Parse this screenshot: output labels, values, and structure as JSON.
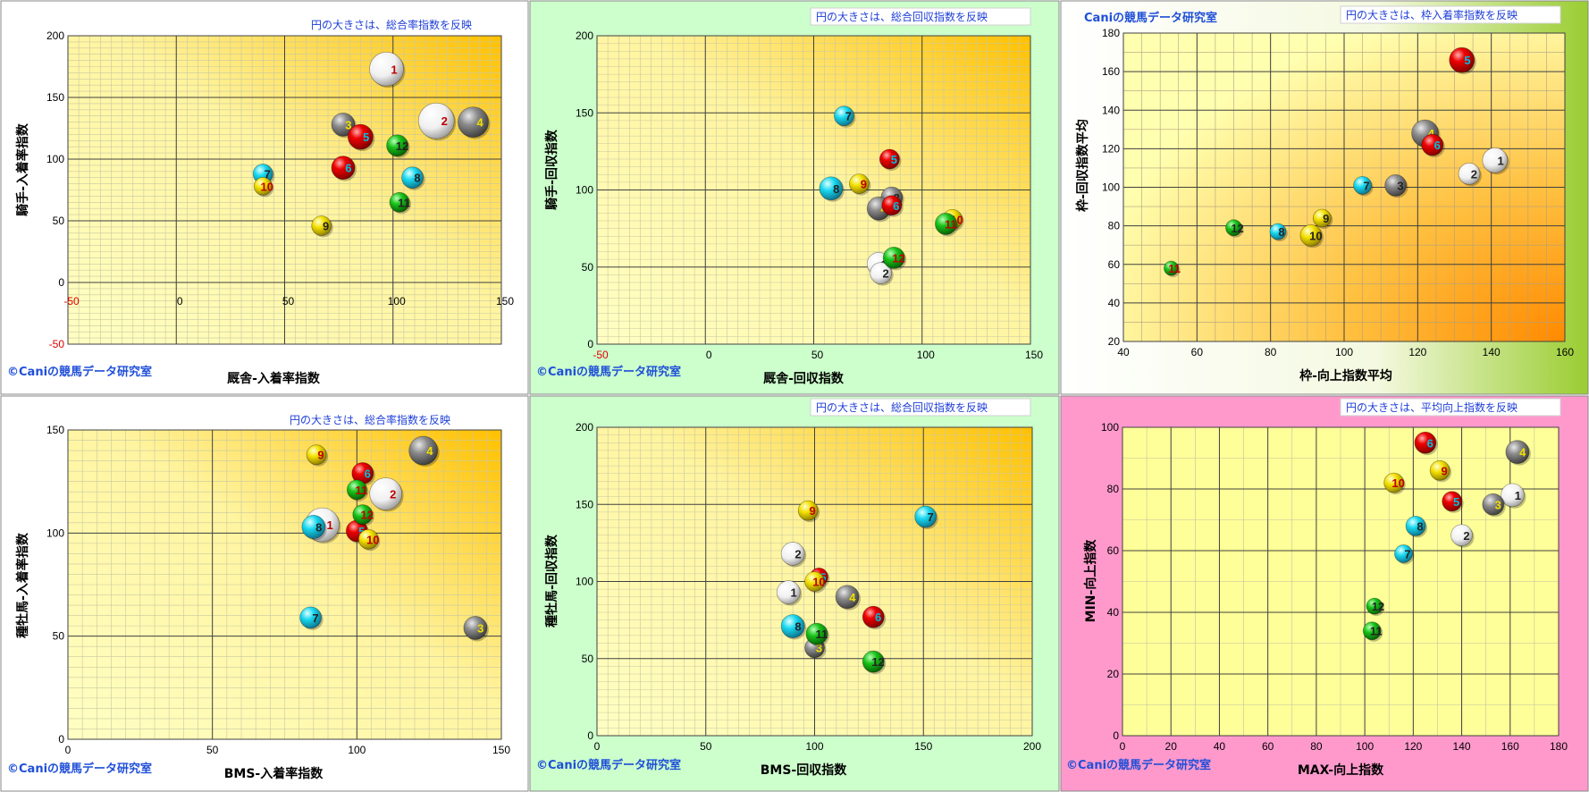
{
  "copyright": "©Caniの競馬データ研究室",
  "colors": {
    "red": "#ee0000",
    "white": "#f4f4f4",
    "gray": "#8a8a8a",
    "green": "#18c218",
    "cyan": "#18d8f0",
    "yellow": "#f4e000",
    "label_black": "#222222",
    "label_red": "#c00000",
    "label_yellow": "#f0e000",
    "label_cyan": "#00c0e0"
  },
  "chart_data": [
    {
      "type": "scatter",
      "note": "円の大きさは、総合率指数を反映",
      "xlabel": "厩舎-入着率指数",
      "ylabel": "騎手-入着率指数",
      "xlim": [
        -50,
        150
      ],
      "ylim": [
        -50,
        200
      ],
      "xticks": [
        "-50",
        "0",
        "50",
        "100",
        "150"
      ],
      "yticks": [
        "-50",
        "0",
        "50",
        "100",
        "150",
        "200"
      ],
      "points": [
        {
          "label": "1",
          "x": 97,
          "y": 173,
          "size": 19,
          "color": "white",
          "lc": "label_red"
        },
        {
          "label": "2",
          "x": 120,
          "y": 131,
          "size": 20,
          "color": "white",
          "lc": "label_red"
        },
        {
          "label": "3",
          "x": 77,
          "y": 128,
          "size": 13,
          "color": "gray",
          "lc": "label_yellow"
        },
        {
          "label": "4",
          "x": 137,
          "y": 130,
          "size": 17,
          "color": "gray",
          "lc": "label_yellow"
        },
        {
          "label": "5",
          "x": 85,
          "y": 118,
          "size": 14,
          "color": "red",
          "lc": "label_cyan"
        },
        {
          "label": "6",
          "x": 77,
          "y": 93,
          "size": 13,
          "color": "red",
          "lc": "label_cyan"
        },
        {
          "label": "7",
          "x": 40,
          "y": 88,
          "size": 11,
          "color": "cyan",
          "lc": "label_black"
        },
        {
          "label": "8",
          "x": 109,
          "y": 85,
          "size": 12,
          "color": "cyan",
          "lc": "label_black"
        },
        {
          "label": "9",
          "x": 67,
          "y": 46,
          "size": 11,
          "color": "yellow",
          "lc": "label_black"
        },
        {
          "label": "10",
          "x": 40,
          "y": 78,
          "size": 10,
          "color": "yellow",
          "lc": "label_red"
        },
        {
          "label": "11",
          "x": 103,
          "y": 65,
          "size": 11,
          "color": "green",
          "lc": "label_black"
        },
        {
          "label": "12",
          "x": 102,
          "y": 111,
          "size": 12,
          "color": "green",
          "lc": "label_black"
        }
      ]
    },
    {
      "type": "scatter",
      "note": "円の大きさは、総合回収指数を反映",
      "xlabel": "厩舎-回収指数",
      "ylabel": "騎手-回収指数",
      "xlim": [
        -50,
        150
      ],
      "ylim": [
        0,
        200
      ],
      "xticks": [
        "-50",
        "0",
        "50",
        "100",
        "150"
      ],
      "yticks": [
        "0",
        "50",
        "100",
        "150",
        "200"
      ],
      "points": [
        {
          "label": "1",
          "x": 80,
          "y": 52,
          "size": 13,
          "color": "white",
          "lc": "label_black"
        },
        {
          "label": "2",
          "x": 81,
          "y": 46,
          "size": 12,
          "color": "white",
          "lc": "label_black"
        },
        {
          "label": "3",
          "x": 86,
          "y": 95,
          "size": 12,
          "color": "gray",
          "lc": "label_black"
        },
        {
          "label": "4",
          "x": 80,
          "y": 88,
          "size": 13,
          "color": "gray",
          "lc": "label_yellow"
        },
        {
          "label": "5",
          "x": 85,
          "y": 120,
          "size": 11,
          "color": "red",
          "lc": "label_cyan"
        },
        {
          "label": "6",
          "x": 86,
          "y": 90,
          "size": 11,
          "color": "red",
          "lc": "label_cyan"
        },
        {
          "label": "7",
          "x": 64,
          "y": 148,
          "size": 11,
          "color": "cyan",
          "lc": "label_black"
        },
        {
          "label": "8",
          "x": 58,
          "y": 101,
          "size": 13,
          "color": "cyan",
          "lc": "label_black"
        },
        {
          "label": "9",
          "x": 71,
          "y": 104,
          "size": 11,
          "color": "yellow",
          "lc": "label_red"
        },
        {
          "label": "10",
          "x": 114,
          "y": 81,
          "size": 11,
          "color": "yellow",
          "lc": "label_red"
        },
        {
          "label": "11",
          "x": 111,
          "y": 78,
          "size": 12,
          "color": "green",
          "lc": "label_red"
        },
        {
          "label": "12",
          "x": 87,
          "y": 56,
          "size": 12,
          "color": "green",
          "lc": "label_red"
        }
      ]
    },
    {
      "type": "scatter",
      "note": "円の大きさは、枠入着率指数を反映",
      "title": "Caniの競馬データ研究室",
      "xlabel": "枠-向上指数平均",
      "ylabel": "枠-回収指数平均",
      "xlim": [
        40,
        160
      ],
      "ylim": [
        20,
        180
      ],
      "xticks": [
        "40",
        "60",
        "80",
        "100",
        "120",
        "140",
        "160"
      ],
      "yticks": [
        "20",
        "40",
        "60",
        "80",
        "100",
        "120",
        "140",
        "160",
        "180"
      ],
      "points": [
        {
          "label": "1",
          "x": 141,
          "y": 114,
          "size": 14,
          "color": "white",
          "lc": "label_black"
        },
        {
          "label": "2",
          "x": 134,
          "y": 107,
          "size": 12,
          "color": "white",
          "lc": "label_black"
        },
        {
          "label": "3",
          "x": 114,
          "y": 101,
          "size": 12,
          "color": "gray",
          "lc": "label_black"
        },
        {
          "label": "4",
          "x": 122,
          "y": 128,
          "size": 15,
          "color": "gray",
          "lc": "label_yellow"
        },
        {
          "label": "5",
          "x": 132,
          "y": 166,
          "size": 14,
          "color": "red",
          "lc": "label_cyan"
        },
        {
          "label": "6",
          "x": 124,
          "y": 122,
          "size": 12,
          "color": "red",
          "lc": "label_cyan"
        },
        {
          "label": "7",
          "x": 105,
          "y": 101,
          "size": 10,
          "color": "cyan",
          "lc": "label_black"
        },
        {
          "label": "8",
          "x": 82,
          "y": 77,
          "size": 9,
          "color": "cyan",
          "lc": "label_black"
        },
        {
          "label": "9",
          "x": 94,
          "y": 84,
          "size": 10,
          "color": "yellow",
          "lc": "label_black"
        },
        {
          "label": "10",
          "x": 91,
          "y": 75,
          "size": 12,
          "color": "yellow",
          "lc": "label_black"
        },
        {
          "label": "11",
          "x": 53,
          "y": 58,
          "size": 8,
          "color": "green",
          "lc": "label_red"
        },
        {
          "label": "12",
          "x": 70,
          "y": 79,
          "size": 9,
          "color": "green",
          "lc": "label_black"
        }
      ]
    },
    {
      "type": "scatter",
      "note": "円の大きさは、総合率指数を反映",
      "xlabel": "BMS-入着率指数",
      "ylabel": "種牡馬-入着率指数",
      "xlim": [
        0,
        150
      ],
      "ylim": [
        0,
        150
      ],
      "xticks": [
        "0",
        "50",
        "100",
        "150"
      ],
      "yticks": [
        "0",
        "50",
        "100",
        "150"
      ],
      "points": [
        {
          "label": "1",
          "x": 88,
          "y": 104,
          "size": 19,
          "color": "white",
          "lc": "label_red"
        },
        {
          "label": "2",
          "x": 110,
          "y": 119,
          "size": 18,
          "color": "white",
          "lc": "label_red"
        },
        {
          "label": "3",
          "x": 141,
          "y": 54,
          "size": 13,
          "color": "gray",
          "lc": "label_yellow"
        },
        {
          "label": "4",
          "x": 123,
          "y": 140,
          "size": 16,
          "color": "gray",
          "lc": "label_yellow"
        },
        {
          "label": "5",
          "x": 100,
          "y": 101,
          "size": 12,
          "color": "red",
          "lc": "label_cyan"
        },
        {
          "label": "6",
          "x": 102,
          "y": 129,
          "size": 12,
          "color": "red",
          "lc": "label_cyan"
        },
        {
          "label": "7",
          "x": 84,
          "y": 59,
          "size": 12,
          "color": "cyan",
          "lc": "label_black"
        },
        {
          "label": "8",
          "x": 85,
          "y": 103,
          "size": 13,
          "color": "cyan",
          "lc": "label_black"
        },
        {
          "label": "9",
          "x": 86,
          "y": 138,
          "size": 11,
          "color": "yellow",
          "lc": "label_red"
        },
        {
          "label": "10",
          "x": 104,
          "y": 97,
          "size": 11,
          "color": "yellow",
          "lc": "label_red"
        },
        {
          "label": "11",
          "x": 100,
          "y": 121,
          "size": 11,
          "color": "green",
          "lc": "label_red"
        },
        {
          "label": "12",
          "x": 102,
          "y": 109,
          "size": 11,
          "color": "green",
          "lc": "label_red"
        }
      ]
    },
    {
      "type": "scatter",
      "note": "円の大きさは、総合回収指数を反映",
      "xlabel": "BMS-回収指数",
      "ylabel": "種牡馬-回収指数",
      "xlim": [
        0,
        200
      ],
      "ylim": [
        0,
        200
      ],
      "xticks": [
        "0",
        "50",
        "100",
        "150",
        "200"
      ],
      "yticks": [
        "0",
        "50",
        "100",
        "150",
        "200"
      ],
      "points": [
        {
          "label": "1",
          "x": 88,
          "y": 93,
          "size": 13,
          "color": "white",
          "lc": "label_black"
        },
        {
          "label": "2",
          "x": 90,
          "y": 118,
          "size": 13,
          "color": "white",
          "lc": "label_black"
        },
        {
          "label": "3",
          "x": 100,
          "y": 57,
          "size": 11,
          "color": "gray",
          "lc": "label_yellow"
        },
        {
          "label": "4",
          "x": 115,
          "y": 90,
          "size": 13,
          "color": "gray",
          "lc": "label_yellow"
        },
        {
          "label": "5",
          "x": 102,
          "y": 103,
          "size": 10,
          "color": "red",
          "lc": "label_cyan"
        },
        {
          "label": "6",
          "x": 127,
          "y": 77,
          "size": 12,
          "color": "red",
          "lc": "label_cyan"
        },
        {
          "label": "7",
          "x": 151,
          "y": 142,
          "size": 12,
          "color": "cyan",
          "lc": "label_black"
        },
        {
          "label": "8",
          "x": 90,
          "y": 71,
          "size": 13,
          "color": "cyan",
          "lc": "label_black"
        },
        {
          "label": "9",
          "x": 97,
          "y": 146,
          "size": 11,
          "color": "yellow",
          "lc": "label_red"
        },
        {
          "label": "10",
          "x": 100,
          "y": 100,
          "size": 11,
          "color": "yellow",
          "lc": "label_red"
        },
        {
          "label": "11",
          "x": 101,
          "y": 66,
          "size": 12,
          "color": "green",
          "lc": "label_black"
        },
        {
          "label": "12",
          "x": 127,
          "y": 48,
          "size": 12,
          "color": "green",
          "lc": "label_black"
        }
      ]
    },
    {
      "type": "scatter",
      "note": "円の大きさは、平均向上指数を反映",
      "xlabel": "MAX-向上指数",
      "ylabel": "MIN-向上指数",
      "xlim": [
        0,
        180
      ],
      "ylim": [
        0,
        100
      ],
      "xticks": [
        "0",
        "20",
        "40",
        "60",
        "80",
        "100",
        "120",
        "140",
        "160",
        "180"
      ],
      "yticks": [
        "0",
        "20",
        "40",
        "60",
        "80",
        "100"
      ],
      "points": [
        {
          "label": "1",
          "x": 161,
          "y": 78,
          "size": 13,
          "color": "white",
          "lc": "label_black"
        },
        {
          "label": "2",
          "x": 140,
          "y": 65,
          "size": 12,
          "color": "white",
          "lc": "label_black"
        },
        {
          "label": "3",
          "x": 153,
          "y": 75,
          "size": 12,
          "color": "gray",
          "lc": "label_yellow"
        },
        {
          "label": "4",
          "x": 163,
          "y": 92,
          "size": 13,
          "color": "gray",
          "lc": "label_yellow"
        },
        {
          "label": "5",
          "x": 136,
          "y": 76,
          "size": 11,
          "color": "red",
          "lc": "label_cyan"
        },
        {
          "label": "6",
          "x": 125,
          "y": 95,
          "size": 12,
          "color": "red",
          "lc": "label_cyan"
        },
        {
          "label": "7",
          "x": 116,
          "y": 59,
          "size": 10,
          "color": "cyan",
          "lc": "label_black"
        },
        {
          "label": "8",
          "x": 121,
          "y": 68,
          "size": 11,
          "color": "cyan",
          "lc": "label_black"
        },
        {
          "label": "9",
          "x": 131,
          "y": 86,
          "size": 11,
          "color": "yellow",
          "lc": "label_red"
        },
        {
          "label": "10",
          "x": 112,
          "y": 82,
          "size": 11,
          "color": "yellow",
          "lc": "label_red"
        },
        {
          "label": "11",
          "x": 103,
          "y": 34,
          "size": 10,
          "color": "green",
          "lc": "label_black"
        },
        {
          "label": "12",
          "x": 104,
          "y": 42,
          "size": 9,
          "color": "green",
          "lc": "label_black"
        }
      ]
    }
  ]
}
